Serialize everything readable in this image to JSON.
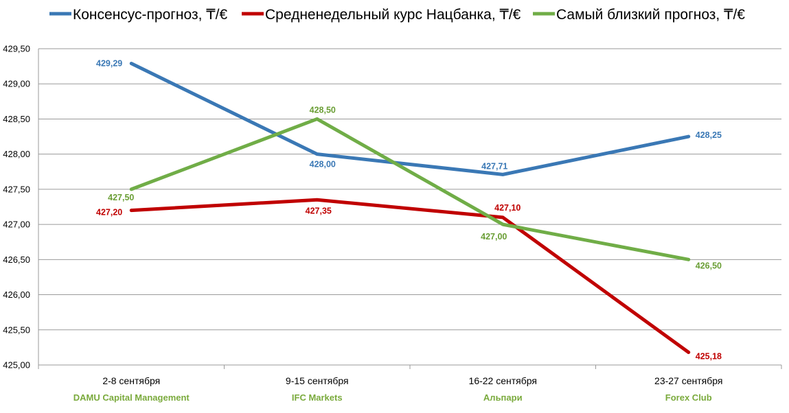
{
  "chart_data": {
    "type": "line",
    "categories": [
      "2-8 сентября",
      "9-15 сентября",
      "16-22 сентября",
      "23-27 сентября"
    ],
    "subcategories": [
      "DAMU Capital Management",
      "IFC Markets",
      "Альпари",
      "Forex Club"
    ],
    "subcategory_color": "#7aaa3c",
    "ylim": [
      425.0,
      429.5
    ],
    "yticks": [
      "429,50",
      "429,00",
      "428,50",
      "428,00",
      "427,50",
      "427,00",
      "426,50",
      "426,00",
      "425,50",
      "425,00"
    ],
    "grid": true,
    "legend_position": "top",
    "series": [
      {
        "name": "Консенсус-прогноз, ₸/€",
        "color": "#3a78b5",
        "label_color": "#3a78b5",
        "values": [
          429.29,
          428.0,
          427.71,
          428.25
        ],
        "labels": [
          "429,29",
          "428,00",
          "427,71",
          "428,25"
        ]
      },
      {
        "name": "Средненедельный курс Нацбанка, ₸/€",
        "color": "#c00000",
        "label_color": "#c00000",
        "values": [
          427.2,
          427.35,
          427.1,
          425.18
        ],
        "labels": [
          "427,20",
          "427,35",
          "427,10",
          "425,18"
        ]
      },
      {
        "name": "Самый близкий прогноз, ₸/€",
        "color": "#70ad47",
        "label_color": "#6a9e35",
        "values": [
          427.5,
          428.5,
          427.0,
          426.5
        ],
        "labels": [
          "427,50",
          "428,50",
          "427,00",
          "426,50"
        ]
      }
    ]
  }
}
